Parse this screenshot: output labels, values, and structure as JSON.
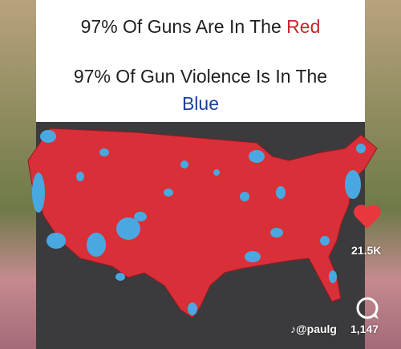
{
  "caption": {
    "line1": {
      "text": "97% Of Guns Are In The ",
      "highlight": "Red"
    },
    "line2": {
      "text": "97% Of Gun Violence Is In The ",
      "highlight": "Blue"
    }
  },
  "actions": {
    "likes": "21.5K",
    "comments": "1,147",
    "handle": "♪@paulg"
  }
}
